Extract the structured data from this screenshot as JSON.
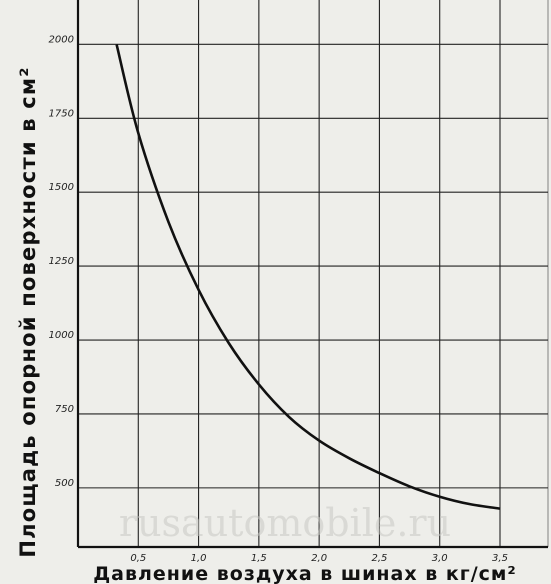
{
  "chart_data": {
    "type": "line",
    "title": "",
    "xlabel": "Давление воздуха в шинах в кг/см²",
    "ylabel": "Площадь опорной поверхности в см²",
    "xlim": [
      0,
      3.5
    ],
    "ylim": [
      300,
      2150
    ],
    "x_ticks": [
      "0,5",
      "1,0",
      "1,5",
      "2,0",
      "2,5",
      "3,0",
      "3,5"
    ],
    "y_ticks": [
      "2000",
      "1750",
      "1500",
      "1250",
      "1000",
      "750",
      "500"
    ],
    "grid": true,
    "watermark": "rusautomobile.ru",
    "series": [
      {
        "color": "#111111",
        "x": [
          0.32,
          0.5,
          0.75,
          1.0,
          1.25,
          1.5,
          1.75,
          2.0,
          2.25,
          2.5,
          2.75,
          3.0,
          3.25,
          3.5
        ],
        "y": [
          2000,
          1700,
          1400,
          1170,
          990,
          850,
          740,
          660,
          600,
          550,
          505,
          470,
          445,
          430
        ]
      }
    ]
  }
}
